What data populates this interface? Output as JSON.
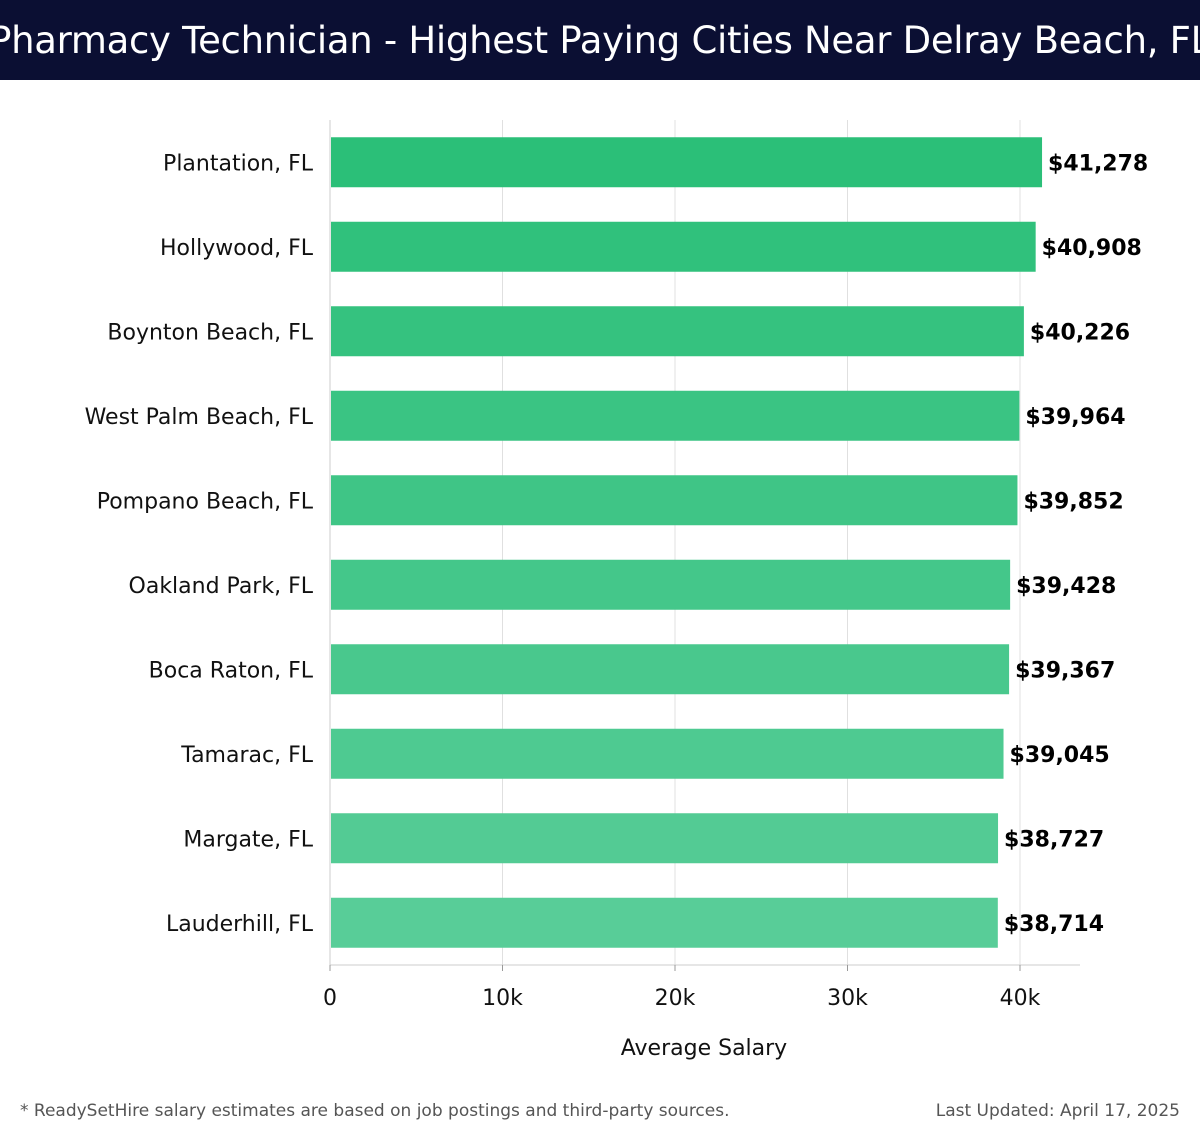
{
  "header": {
    "title": "Pharmacy Technician - Highest Paying Cities Near Delray Beach, FL"
  },
  "chart_data": {
    "type": "bar",
    "orientation": "horizontal",
    "title": "Pharmacy Technician - Highest Paying Cities Near Delray Beach, FL",
    "xlabel": "Average Salary",
    "ylabel": "",
    "categories": [
      "Plantation, FL",
      "Hollywood, FL",
      "Boynton Beach, FL",
      "West Palm Beach, FL",
      "Pompano Beach, FL",
      "Oakland Park, FL",
      "Boca Raton, FL",
      "Tamarac, FL",
      "Margate, FL",
      "Lauderhill, FL"
    ],
    "values": [
      41278,
      40908,
      40226,
      39964,
      39852,
      39428,
      39367,
      39045,
      38727,
      38714
    ],
    "value_labels": [
      "$41,278",
      "$40,908",
      "$40,226",
      "$39,964",
      "$39,852",
      "$39,428",
      "$39,367",
      "$39,045",
      "$38,727",
      "$38,714"
    ],
    "xlim": [
      0,
      43500
    ],
    "xticks": [
      0,
      10000,
      20000,
      30000,
      40000
    ],
    "xtick_labels": [
      "0",
      "10k",
      "20k",
      "30k",
      "40k"
    ],
    "grid": true,
    "legend": "none",
    "colors": {
      "bar_top": "#2bbf78",
      "bar_bottom": "#58cd98",
      "gridline": "#e0e0e0",
      "title_bg": "#0b0f33"
    }
  },
  "footer": {
    "note": "* ReadySetHire salary estimates are based on job postings and third-party sources.",
    "updated": "Last Updated: April 17, 2025"
  }
}
